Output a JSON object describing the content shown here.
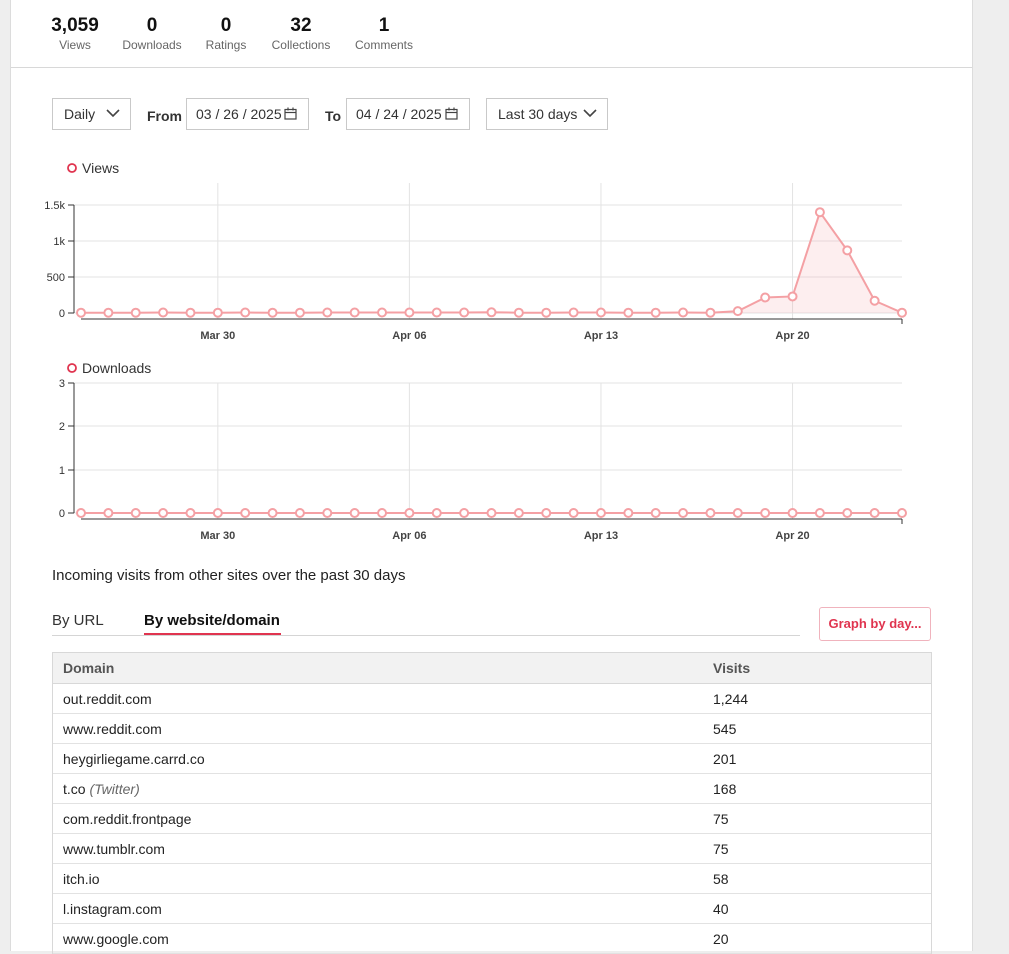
{
  "stats": [
    {
      "value": "3,059",
      "label": "Views"
    },
    {
      "value": "0",
      "label": "Downloads"
    },
    {
      "value": "0",
      "label": "Ratings"
    },
    {
      "value": "32",
      "label": "Collections"
    },
    {
      "value": "1",
      "label": "Comments"
    }
  ],
  "controls": {
    "interval": "Daily",
    "from_label": "From",
    "from_date": "03 / 26 / 2025",
    "to_label": "To",
    "to_date": "04 / 24 / 2025",
    "range": "Last 30 days"
  },
  "colors": {
    "series": "#f4a0a4",
    "accent": "#e0344f",
    "grid": "#e3e3e3"
  },
  "chart_data": [
    {
      "type": "line",
      "series": [
        {
          "name": "Views",
          "values": [
            4,
            4,
            4,
            7,
            4,
            4,
            7,
            4,
            4,
            7,
            7,
            7,
            7,
            7,
            7,
            10,
            4,
            4,
            7,
            7,
            4,
            4,
            7,
            4,
            26,
            215,
            230,
            1400,
            870,
            170,
            4
          ]
        }
      ],
      "x": [
        "Mar 25",
        "Mar 26",
        "Mar 27",
        "Mar 28",
        "Mar 29",
        "Mar 30",
        "Mar 31",
        "Apr 01",
        "Apr 02",
        "Apr 03",
        "Apr 04",
        "Apr 05",
        "Apr 06",
        "Apr 07",
        "Apr 08",
        "Apr 09",
        "Apr 10",
        "Apr 11",
        "Apr 12",
        "Apr 13",
        "Apr 14",
        "Apr 15",
        "Apr 16",
        "Apr 17",
        "Apr 18",
        "Apr 19",
        "Apr 20",
        "Apr 21",
        "Apr 22",
        "Apr 23",
        "Apr 24"
      ],
      "x_ticks": [
        "Mar 30",
        "Apr 06",
        "Apr 13",
        "Apr 20"
      ],
      "y_ticks": [
        "0",
        "500",
        "1k",
        "1.5k"
      ],
      "ylim": [
        0,
        1500
      ],
      "area": true,
      "grid": true,
      "legend": "top-left"
    },
    {
      "type": "line",
      "series": [
        {
          "name": "Downloads",
          "values": [
            0,
            0,
            0,
            0,
            0,
            0,
            0,
            0,
            0,
            0,
            0,
            0,
            0,
            0,
            0,
            0,
            0,
            0,
            0,
            0,
            0,
            0,
            0,
            0,
            0,
            0,
            0,
            0,
            0,
            0,
            0
          ]
        }
      ],
      "x": [
        "Mar 25",
        "Mar 26",
        "Mar 27",
        "Mar 28",
        "Mar 29",
        "Mar 30",
        "Mar 31",
        "Apr 01",
        "Apr 02",
        "Apr 03",
        "Apr 04",
        "Apr 05",
        "Apr 06",
        "Apr 07",
        "Apr 08",
        "Apr 09",
        "Apr 10",
        "Apr 11",
        "Apr 12",
        "Apr 13",
        "Apr 14",
        "Apr 15",
        "Apr 16",
        "Apr 17",
        "Apr 18",
        "Apr 19",
        "Apr 20",
        "Apr 21",
        "Apr 22",
        "Apr 23",
        "Apr 24"
      ],
      "x_ticks": [
        "Mar 30",
        "Apr 06",
        "Apr 13",
        "Apr 20"
      ],
      "y_ticks": [
        "0",
        "1",
        "2",
        "3"
      ],
      "ylim": [
        0,
        3
      ],
      "area": false,
      "grid": true,
      "legend": "top-left"
    }
  ],
  "incoming": {
    "title": "Incoming visits from other sites over the past 30 days",
    "tabs": [
      "By URL",
      "By website/domain"
    ],
    "active_tab": "By website/domain",
    "graph_button": "Graph by day...",
    "table": {
      "headers": [
        "Domain",
        "Visits"
      ],
      "rows": [
        {
          "domain": "out.reddit.com",
          "note": "",
          "visits": "1,244"
        },
        {
          "domain": "www.reddit.com",
          "note": "",
          "visits": "545"
        },
        {
          "domain": "heygirliegame.carrd.co",
          "note": "",
          "visits": "201"
        },
        {
          "domain": "t.co",
          "note": "(Twitter)",
          "visits": "168"
        },
        {
          "domain": "com.reddit.frontpage",
          "note": "",
          "visits": "75"
        },
        {
          "domain": "www.tumblr.com",
          "note": "",
          "visits": "75"
        },
        {
          "domain": "itch.io",
          "note": "",
          "visits": "58"
        },
        {
          "domain": "l.instagram.com",
          "note": "",
          "visits": "40"
        },
        {
          "domain": "www.google.com",
          "note": "",
          "visits": "20"
        }
      ]
    }
  }
}
